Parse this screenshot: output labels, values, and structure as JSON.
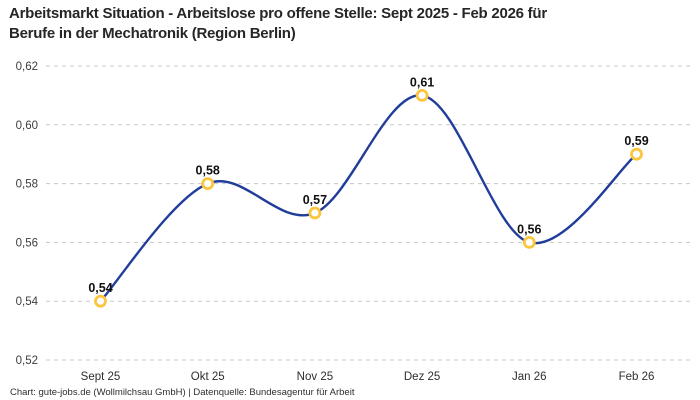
{
  "header": {
    "title_line1": "Arbeitsmarkt Situation - Arbeitslose pro offene Stelle: Sept 2025 - Feb 2026 für",
    "title_line2": "Berufe in der Mechatronik (Region Berlin)"
  },
  "footer": {
    "attribution": "Chart: gute-jobs.de (Wollmilchsau GmbH) | Datenquelle: Bundesagentur für Arbeit"
  },
  "chart_data": {
    "type": "line",
    "title": "Arbeitsmarkt Situation - Arbeitslose pro offene Stelle: Sept 2025 - Feb 2026 für Berufe in der Mechatronik (Region Berlin)",
    "categories": [
      "Sept 25",
      "Okt 25",
      "Nov 25",
      "Dez 25",
      "Jan 26",
      "Feb 26"
    ],
    "values": [
      0.54,
      0.58,
      0.57,
      0.61,
      0.56,
      0.59
    ],
    "value_labels": [
      "0,54",
      "0,58",
      "0,57",
      "0,61",
      "0,56",
      "0,59"
    ],
    "ylim": [
      0.52,
      0.62
    ],
    "yticks": [
      0.62,
      0.6,
      0.58,
      0.56,
      0.54,
      0.52
    ],
    "ytick_labels": [
      "0,62",
      "0,60",
      "0,58",
      "0,56",
      "0,54",
      "0,52"
    ],
    "xlabel": "",
    "ylabel": "",
    "legend": "none",
    "grid": "horizontal-dashed",
    "line_smoothing": "spline",
    "colors": {
      "line": "#213d9a",
      "marker_ring": "#fbc53d",
      "marker_fill": "#ffffff",
      "grid": "#c8c8c8",
      "title_text": "#262626",
      "axis_text": "#3d3d3d",
      "point_label_text": "#111111",
      "background": "#ffffff"
    }
  }
}
